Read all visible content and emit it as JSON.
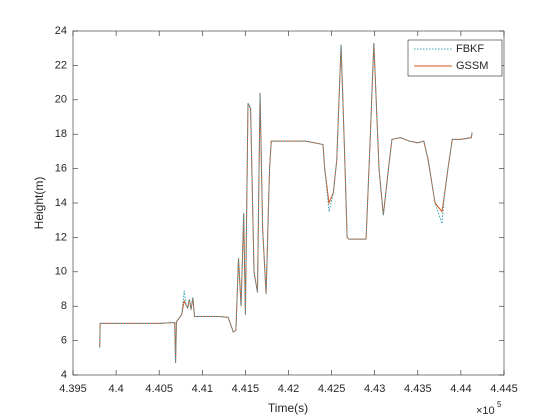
{
  "chart_data": {
    "type": "line",
    "x_label": "Time(s)",
    "y_label": "Height(m)",
    "x_multiplier": "×10",
    "x_multiplier_power": "5",
    "xlim": [
      439500,
      444500
    ],
    "xticks": [
      {
        "value": 439500,
        "label": "4.395"
      },
      {
        "value": 440000,
        "label": "4.4"
      },
      {
        "value": 440500,
        "label": "4.405"
      },
      {
        "value": 441000,
        "label": "4.41"
      },
      {
        "value": 441500,
        "label": "4.415"
      },
      {
        "value": 442000,
        "label": "4.42"
      },
      {
        "value": 442500,
        "label": "4.425"
      },
      {
        "value": 443000,
        "label": "4.43"
      },
      {
        "value": 443500,
        "label": "4.435"
      },
      {
        "value": 444000,
        "label": "4.44"
      },
      {
        "value": 444500,
        "label": "4.445"
      }
    ],
    "ylim": [
      4,
      24
    ],
    "yticks": [
      4,
      6,
      8,
      10,
      12,
      14,
      16,
      18,
      20,
      22,
      24
    ],
    "grid": false,
    "legend_position": "top-right",
    "x": [
      439810,
      439815,
      440000,
      440500,
      440680,
      440690,
      440700,
      440760,
      440790,
      440810,
      440830,
      440850,
      440870,
      440890,
      440910,
      441000,
      441200,
      441300,
      441360,
      441390,
      441420,
      441450,
      441480,
      441500,
      441530,
      441560,
      441600,
      441640,
      441670,
      441700,
      441740,
      441780,
      441800,
      442000,
      442200,
      442300,
      442400,
      442420,
      442470,
      442520,
      442560,
      442610,
      442650,
      442680,
      442700,
      442900,
      442950,
      442990,
      443050,
      443100,
      443160,
      443200,
      443300,
      443400,
      443500,
      443570,
      443620,
      443700,
      443780,
      443810,
      443850,
      443900,
      444000,
      444120,
      444130
    ],
    "series": [
      {
        "name": "FBKF",
        "color": "#3a9fb5",
        "dash": "dotted",
        "values": [
          5.6,
          7.0,
          7.0,
          7.0,
          7.05,
          4.7,
          7.1,
          7.5,
          8.9,
          8.1,
          7.9,
          8.4,
          7.8,
          8.5,
          7.4,
          7.4,
          7.4,
          7.35,
          6.5,
          6.6,
          10.8,
          8.0,
          13.4,
          7.5,
          19.8,
          19.5,
          10.0,
          8.8,
          20.4,
          12.5,
          8.7,
          16.0,
          17.6,
          17.6,
          17.6,
          17.5,
          17.4,
          16.0,
          13.5,
          14.6,
          16.5,
          23.2,
          17.0,
          12.0,
          11.9,
          11.9,
          18.0,
          23.3,
          16.0,
          13.3,
          16.0,
          17.7,
          17.8,
          17.6,
          17.5,
          17.6,
          16.5,
          14.0,
          12.8,
          14.5,
          16.0,
          17.7,
          17.7,
          17.8,
          18.1
        ]
      },
      {
        "name": "GSSM",
        "color": "#d95319",
        "dash": "solid",
        "values": [
          5.6,
          7.0,
          7.0,
          7.0,
          7.05,
          4.7,
          7.1,
          7.5,
          8.3,
          8.1,
          7.9,
          8.4,
          7.8,
          8.5,
          7.4,
          7.4,
          7.4,
          7.35,
          6.5,
          6.6,
          10.8,
          8.0,
          13.4,
          7.5,
          19.8,
          19.5,
          10.0,
          8.8,
          20.4,
          12.5,
          8.7,
          16.0,
          17.6,
          17.6,
          17.6,
          17.5,
          17.4,
          16.0,
          14.0,
          14.6,
          16.5,
          23.2,
          17.0,
          12.0,
          11.9,
          11.9,
          18.0,
          23.3,
          16.0,
          13.3,
          16.0,
          17.7,
          17.8,
          17.6,
          17.5,
          17.6,
          16.5,
          14.0,
          13.5,
          14.5,
          16.0,
          17.7,
          17.7,
          17.8,
          18.1
        ]
      }
    ]
  }
}
